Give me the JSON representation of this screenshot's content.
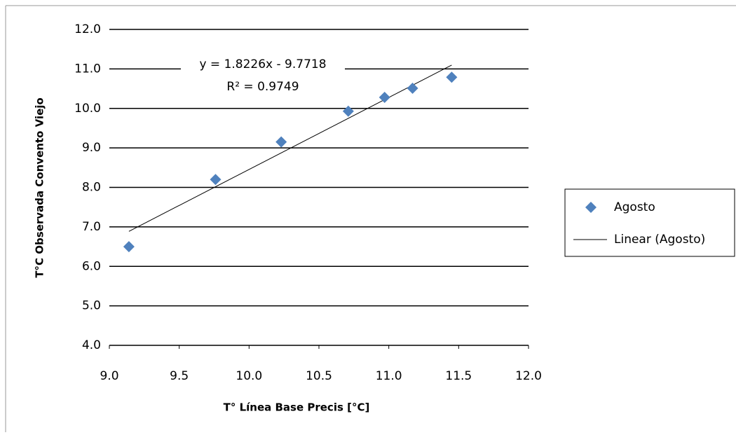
{
  "chart_data": {
    "type": "scatter",
    "x_label": "T° Línea  Base Precis [°C]",
    "y_label": "T°C Observada Convento Viejo",
    "series": [
      {
        "name": "Agosto",
        "color": "#4f81bd",
        "x": [
          9.14,
          9.76,
          10.23,
          10.71,
          10.97,
          11.17,
          11.45
        ],
        "values": [
          6.5,
          8.2,
          9.15,
          9.93,
          10.28,
          10.51,
          10.79
        ]
      }
    ],
    "trendline": {
      "name": "Linear (Agosto)",
      "color": "#000000",
      "slope": 1.8226,
      "intercept": -9.7718,
      "equation": "y = 1.8226x - 9.7718",
      "r2_label": "R² = 0.9749"
    },
    "xlim": [
      9,
      12
    ],
    "xticks": [
      {
        "value": 9,
        "label": "9.0"
      },
      9.5,
      {
        "value": 10,
        "label": "10.0"
      },
      10.5,
      {
        "value": 11,
        "label": "11.0"
      },
      11.5,
      {
        "value": 12,
        "label": "12.0"
      }
    ],
    "ylim": [
      4,
      12
    ],
    "yticks": [
      {
        "value": 4,
        "label": "4.0"
      },
      {
        "value": 5,
        "label": "5.0"
      },
      {
        "value": 6,
        "label": "6.0"
      },
      {
        "value": 7,
        "label": "7.0"
      },
      {
        "value": 8,
        "label": "8.0"
      },
      {
        "value": 9,
        "label": "9.0"
      },
      {
        "value": 10,
        "label": "10.0"
      },
      {
        "value": 11,
        "label": "11.0"
      },
      {
        "value": 12,
        "label": "12.0"
      }
    ],
    "grid": true
  }
}
